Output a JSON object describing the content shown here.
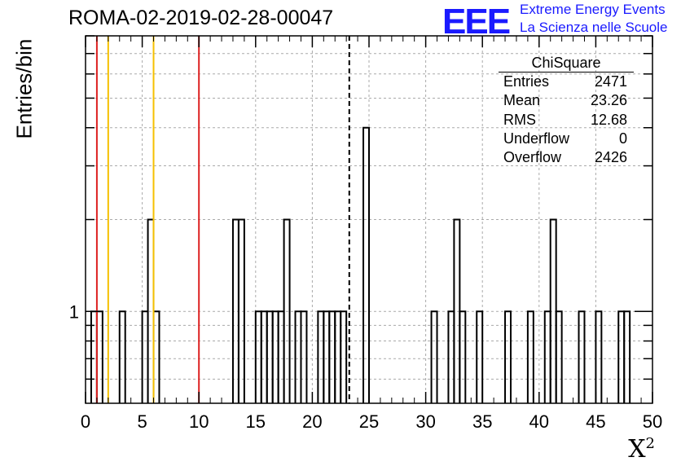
{
  "header": {
    "title": "ROMA-02-2019-02-28-00047",
    "logo_text": "EEE",
    "logo_line1": "Extreme Energy Events",
    "logo_line2": "La Scienza nelle Scuole"
  },
  "stats": {
    "title": "ChiSquare",
    "rows": [
      {
        "label": "Entries",
        "value": "2471"
      },
      {
        "label": "Mean",
        "value": "23.26"
      },
      {
        "label": "RMS",
        "value": "12.68"
      },
      {
        "label": "Underflow",
        "value": "0"
      },
      {
        "label": "Overflow",
        "value": "2426"
      }
    ]
  },
  "colors": {
    "red_line": "#dd2222",
    "yellow_line": "#f5c000",
    "histogram": "#000000",
    "grid": "#aaaaaa"
  },
  "chart_data": {
    "type": "histogram",
    "xlabel": "X",
    "xlabel_sup": "2",
    "ylabel": "Entries/bin",
    "xlim": [
      0,
      50
    ],
    "ylog": true,
    "ylim": [
      0.5,
      8
    ],
    "x_ticks": [
      0,
      5,
      10,
      15,
      20,
      25,
      30,
      35,
      40,
      45,
      50
    ],
    "y_tick_labels": [
      {
        "value": 1,
        "label": "1"
      }
    ],
    "grid": true,
    "bin_width": 0.5,
    "bins": [
      {
        "x": 0.5,
        "count": 1
      },
      {
        "x": 1.0,
        "count": 1
      },
      {
        "x": 3.0,
        "count": 1
      },
      {
        "x": 5.0,
        "count": 1
      },
      {
        "x": 5.5,
        "count": 2
      },
      {
        "x": 6.0,
        "count": 1
      },
      {
        "x": 13.0,
        "count": 2
      },
      {
        "x": 13.5,
        "count": 2
      },
      {
        "x": 15.0,
        "count": 1
      },
      {
        "x": 15.5,
        "count": 1
      },
      {
        "x": 16.0,
        "count": 1
      },
      {
        "x": 16.5,
        "count": 1
      },
      {
        "x": 17.0,
        "count": 1
      },
      {
        "x": 17.5,
        "count": 2
      },
      {
        "x": 18.5,
        "count": 1
      },
      {
        "x": 19.0,
        "count": 1
      },
      {
        "x": 20.5,
        "count": 1
      },
      {
        "x": 21.0,
        "count": 1
      },
      {
        "x": 21.5,
        "count": 1
      },
      {
        "x": 22.0,
        "count": 1
      },
      {
        "x": 22.5,
        "count": 1
      },
      {
        "x": 24.5,
        "count": 4
      },
      {
        "x": 30.5,
        "count": 1
      },
      {
        "x": 32.0,
        "count": 1
      },
      {
        "x": 32.5,
        "count": 2
      },
      {
        "x": 33.0,
        "count": 1
      },
      {
        "x": 34.5,
        "count": 1
      },
      {
        "x": 37.0,
        "count": 1
      },
      {
        "x": 39.0,
        "count": 1
      },
      {
        "x": 40.5,
        "count": 1
      },
      {
        "x": 41.0,
        "count": 2
      },
      {
        "x": 41.5,
        "count": 1
      },
      {
        "x": 43.5,
        "count": 1
      },
      {
        "x": 45.0,
        "count": 1
      },
      {
        "x": 47.0,
        "count": 1
      },
      {
        "x": 47.5,
        "count": 1
      }
    ],
    "reference_lines": [
      {
        "x": 1.0,
        "color": "red"
      },
      {
        "x": 2.0,
        "color": "yellow"
      },
      {
        "x": 6.0,
        "color": "yellow"
      },
      {
        "x": 10.0,
        "color": "red"
      },
      {
        "x": 23.26,
        "color": "black",
        "style": "dashed"
      }
    ]
  }
}
